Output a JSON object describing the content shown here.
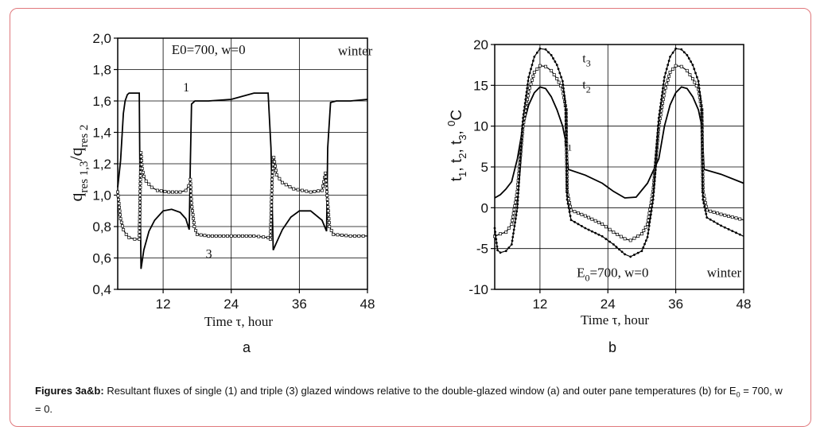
{
  "caption": {
    "label": "Figures 3a&b:",
    "text_before": "Resultant fluxes of single (1) and triple (3) glazed windows relative to the double-glazed window (a) and outer pane temperatures (b) for E",
    "subscript": "0",
    "text_after": "= 700, w = 0."
  },
  "chart_data": [
    {
      "type": "line",
      "panel_label": "a",
      "xlabel": "Time τ, hour",
      "ylabel_main": "q",
      "ylabel_sub1": "res 1,3",
      "ylabel_mid": "/q",
      "ylabel_sub2": "res 2",
      "xlim": [
        4,
        48
      ],
      "ylim": [
        0.4,
        2.0
      ],
      "x_ticks": [
        12,
        24,
        36,
        48
      ],
      "y_ticks": [
        "0,4",
        "0,6",
        "0,8",
        "1,0",
        "1,2",
        "1,4",
        "1,6",
        "1,8",
        "2,0"
      ],
      "y_tick_values": [
        0.4,
        0.6,
        0.8,
        1.0,
        1.2,
        1.4,
        1.6,
        1.8,
        2.0
      ],
      "annotations": [
        {
          "text": "E0=700, w=0",
          "x": 13.5,
          "y": 1.9
        },
        {
          "text": "winter",
          "x": 42.8,
          "y": 1.89
        }
      ],
      "grid": true,
      "series": [
        {
          "name": "1",
          "label_at": [
            15.5,
            1.66
          ],
          "marker": "none",
          "x": [
            4.0,
            4.5,
            5.0,
            5.3,
            5.7,
            6.0,
            7.0,
            7.8,
            7.9,
            8.1,
            8.6,
            9.5,
            10.5,
            12.0,
            13.5,
            15.0,
            16.0,
            16.6,
            16.8,
            17.0,
            17.6,
            18.5,
            20.0,
            24.0,
            28.0,
            30.5,
            31.0,
            31.4,
            32.0,
            33.0,
            34.5,
            36.0,
            38.0,
            40.0,
            40.8,
            41.0,
            41.5,
            42.5,
            45.0,
            48.0
          ],
          "y": [
            1.05,
            1.22,
            1.52,
            1.6,
            1.64,
            1.65,
            1.65,
            1.65,
            1.2,
            0.53,
            0.65,
            0.77,
            0.84,
            0.9,
            0.91,
            0.89,
            0.85,
            0.78,
            1.2,
            1.58,
            1.6,
            1.6,
            1.6,
            1.61,
            1.65,
            1.65,
            1.3,
            0.65,
            0.7,
            0.78,
            0.86,
            0.9,
            0.9,
            0.84,
            0.77,
            1.3,
            1.59,
            1.6,
            1.6,
            1.61
          ]
        },
        {
          "name": "3",
          "label_at": [
            19.5,
            0.6
          ],
          "marker": "square",
          "x": [
            4.0,
            4.5,
            5.0,
            5.5,
            6.0,
            7.0,
            7.8,
            7.95,
            8.1,
            8.3,
            8.6,
            9.0,
            10.0,
            11.0,
            13.0,
            15.0,
            16.0,
            16.5,
            16.8,
            17.0,
            17.5,
            18.0,
            20.0,
            24.0,
            28.0,
            30.5,
            30.9,
            31.2,
            31.5,
            32.0,
            33.0,
            35.0,
            38.0,
            40.0,
            40.6,
            41.0,
            41.3,
            42.0,
            45.0,
            48.0
          ],
          "y": [
            1.02,
            0.85,
            0.78,
            0.75,
            0.73,
            0.72,
            0.72,
            1.0,
            1.27,
            1.17,
            1.12,
            1.09,
            1.05,
            1.03,
            1.02,
            1.02,
            1.03,
            1.06,
            1.1,
            0.95,
            0.8,
            0.75,
            0.74,
            0.74,
            0.74,
            0.73,
            0.72,
            1.1,
            1.24,
            1.13,
            1.08,
            1.04,
            1.02,
            1.03,
            1.14,
            0.95,
            0.8,
            0.75,
            0.74,
            0.74
          ]
        }
      ]
    },
    {
      "type": "line",
      "panel_label": "b",
      "xlabel": "Time τ, hour",
      "ylabel_parts": [
        "t",
        "1",
        ", t",
        "2",
        ", t",
        "3",
        ", ",
        "0",
        "C"
      ],
      "xlim": [
        4,
        48
      ],
      "ylim": [
        -10,
        20
      ],
      "x_ticks": [
        12,
        24,
        36,
        48
      ],
      "y_ticks": [
        "-10",
        "-5",
        "0",
        "5",
        "10",
        "15",
        "20"
      ],
      "y_tick_values": [
        -10,
        -5,
        0,
        5,
        10,
        15,
        20
      ],
      "annotations": [
        {
          "text": "E",
          "sub": "0",
          "rest": "=700, w=0",
          "x": 18.5,
          "y": -8.5
        },
        {
          "text": "winter",
          "x": 41.5,
          "y": -8.5
        }
      ],
      "grid": true,
      "series": [
        {
          "name": "t",
          "sub": "1",
          "label_at": [
            16.2,
            7.5
          ],
          "marker": "none",
          "x": [
            4,
            5,
            6,
            7,
            8,
            9,
            10,
            11,
            12,
            13,
            14,
            15,
            16,
            16.6,
            17,
            20,
            23,
            25,
            27,
            29,
            31,
            33,
            34,
            35,
            36,
            37,
            38,
            39,
            40,
            40.6,
            41,
            44,
            48
          ],
          "y": [
            1.2,
            1.6,
            2.3,
            3.2,
            6.0,
            10.0,
            12.6,
            14.1,
            14.8,
            14.6,
            13.6,
            12.0,
            10.0,
            8.0,
            4.7,
            4.0,
            3.0,
            2.0,
            1.2,
            1.3,
            3.0,
            6.0,
            10.0,
            12.6,
            14.1,
            14.8,
            14.6,
            13.6,
            12.0,
            10.0,
            4.7,
            4.1,
            3.0
          ]
        },
        {
          "name": "t",
          "sub": "2",
          "label_at": [
            19.5,
            14.6
          ],
          "marker": "square",
          "x": [
            4,
            5,
            6,
            7,
            8,
            9,
            10,
            11,
            12,
            13,
            14,
            15,
            16,
            16.6,
            16.8,
            17.5,
            20,
            23,
            25,
            27,
            28,
            30,
            31,
            32,
            33,
            34,
            35,
            36,
            37,
            38,
            39,
            40,
            40.6,
            40.8,
            41.5,
            44,
            48
          ],
          "y": [
            -3.5,
            -3.2,
            -3.0,
            -2.0,
            2.0,
            10.0,
            14.2,
            16.6,
            17.4,
            17.3,
            16.8,
            15.8,
            14.5,
            12.0,
            2.0,
            -0.3,
            -1.0,
            -2.0,
            -3.0,
            -3.8,
            -4.0,
            -3.2,
            -2.0,
            2.0,
            10.0,
            14.2,
            16.6,
            17.4,
            17.3,
            16.8,
            15.8,
            14.5,
            12.0,
            2.0,
            -0.3,
            -0.8,
            -1.5
          ]
        },
        {
          "name": "t",
          "sub": "3",
          "label_at": [
            19.5,
            17.8
          ],
          "marker": "dot",
          "x": [
            4,
            4.5,
            5,
            6,
            7,
            8,
            9,
            10,
            11,
            12,
            13,
            14,
            15,
            16,
            16.6,
            16.8,
            17.5,
            20,
            23,
            25,
            27,
            28,
            30,
            31,
            32,
            33,
            34,
            35,
            36,
            37,
            38,
            39,
            40,
            40.6,
            40.8,
            41.5,
            44,
            48
          ],
          "y": [
            -2.5,
            -5.2,
            -5.5,
            -5.3,
            -4.5,
            0.0,
            11.0,
            16.0,
            18.5,
            19.5,
            19.4,
            18.7,
            17.5,
            15.5,
            12.0,
            1.0,
            -1.5,
            -2.5,
            -3.5,
            -4.5,
            -5.7,
            -6.0,
            -5.3,
            -3.6,
            1.0,
            11.0,
            16.0,
            18.5,
            19.5,
            19.4,
            18.7,
            17.5,
            15.5,
            12.0,
            1.0,
            -1.2,
            -2.2,
            -3.5
          ]
        }
      ]
    }
  ]
}
